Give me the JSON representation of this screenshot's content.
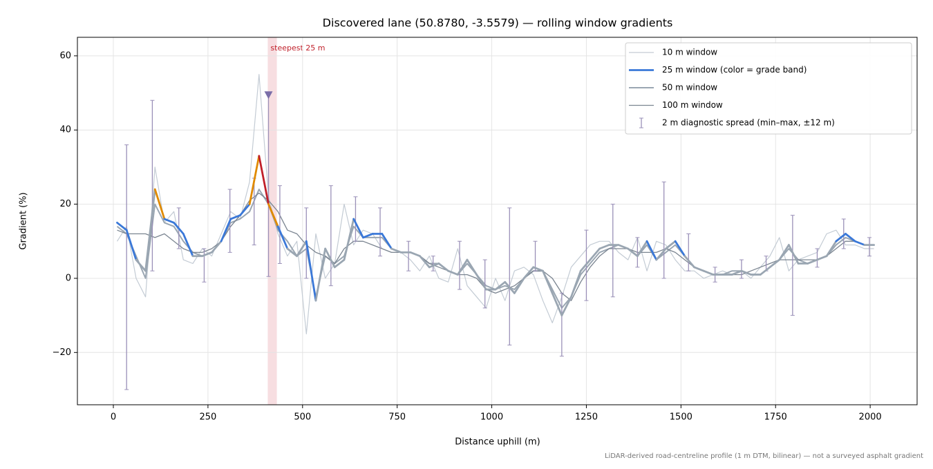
{
  "chart_data": {
    "type": "line",
    "title": "Discovered lane (50.8780, -3.5579) — rolling window gradients",
    "x_label": "Distance uphill (m)",
    "y_label": "Gradient (%)",
    "footnote": "LiDAR-derived road-centreline profile (1 m DTM, bilinear) — not a surveyed asphalt gradient",
    "xlim": [
      -95,
      2124
    ],
    "ylim": [
      -34.1,
      65
    ],
    "xticks": [
      0,
      250,
      500,
      750,
      1000,
      1250,
      1500,
      1750,
      2000
    ],
    "yticks": [
      {
        "value": -20,
        "label": "−20"
      },
      0,
      20,
      40,
      60
    ],
    "grid": true,
    "legend": "upper right",
    "x": [
      10,
      35,
      60,
      85,
      110,
      135,
      160,
      185,
      210,
      235,
      260,
      285,
      310,
      335,
      360,
      385,
      410,
      435,
      460,
      485,
      510,
      535,
      560,
      585,
      610,
      635,
      660,
      685,
      710,
      735,
      760,
      785,
      810,
      835,
      860,
      885,
      910,
      935,
      960,
      985,
      1010,
      1035,
      1060,
      1085,
      1110,
      1135,
      1160,
      1185,
      1210,
      1235,
      1260,
      1285,
      1310,
      1335,
      1360,
      1385,
      1410,
      1435,
      1460,
      1485,
      1510,
      1535,
      1560,
      1585,
      1610,
      1635,
      1660,
      1685,
      1710,
      1735,
      1760,
      1785,
      1810,
      1835,
      1860,
      1885,
      1910,
      1935,
      1960,
      1985,
      2010
    ],
    "series": [
      {
        "name": "10 m window",
        "color": "#c3cbd4",
        "width": 1.2,
        "values": [
          10,
          14,
          0,
          -5,
          30,
          15,
          18,
          5,
          4,
          8,
          6,
          12,
          18,
          16,
          26,
          55,
          22,
          12,
          6,
          10,
          -15,
          12,
          0,
          4,
          20,
          9,
          13,
          12,
          8,
          7,
          7,
          5,
          2,
          6,
          0,
          -1,
          8,
          -2,
          -5,
          -8,
          0,
          -6,
          2,
          3,
          1,
          -6,
          -12,
          -5,
          3,
          6,
          9,
          10,
          10,
          7,
          5,
          11,
          2,
          10,
          9,
          5,
          2,
          2,
          0,
          1,
          2,
          1,
          2,
          0,
          3,
          6,
          11,
          2,
          5,
          6,
          7,
          12,
          13,
          9,
          9,
          8,
          8
        ]
      },
      {
        "name": "50 m window",
        "color": "#9aa6b2",
        "width": 2,
        "values": [
          14,
          12,
          6,
          0,
          20,
          15,
          14,
          10,
          7,
          6,
          7,
          10,
          15,
          16,
          18,
          24,
          20,
          13,
          10,
          6,
          8,
          -5,
          6,
          4,
          6,
          14,
          11,
          11,
          11,
          8,
          7,
          7,
          6,
          4,
          4,
          2,
          1,
          4,
          1,
          -2,
          -3,
          -2,
          -3,
          0,
          2,
          2,
          -3,
          -8,
          -5,
          1,
          4,
          7,
          8,
          9,
          8,
          6,
          9,
          5,
          7,
          9,
          6,
          3,
          2,
          1,
          1,
          2,
          2,
          1,
          1,
          3,
          5,
          8,
          5,
          4,
          5,
          6,
          9,
          11,
          10,
          9,
          9
        ]
      },
      {
        "name": "100 m window",
        "color": "#7a8490",
        "width": 1.3,
        "values": [
          13,
          12,
          12,
          12,
          11,
          12,
          10,
          8,
          7,
          7,
          8,
          10,
          14,
          17,
          21,
          23,
          21,
          18,
          13,
          12,
          9,
          7,
          6,
          4,
          8,
          10,
          10,
          9,
          8,
          7,
          7,
          7,
          6,
          4,
          3,
          2,
          1,
          1,
          0,
          -3,
          -4,
          -3,
          -2,
          0,
          2,
          2,
          0,
          -4,
          -6,
          -1,
          3,
          6,
          8,
          8,
          8,
          7,
          7,
          7,
          8,
          7,
          5,
          3,
          2,
          1,
          1,
          1,
          1,
          2,
          3,
          4,
          5,
          5,
          5,
          5,
          5,
          6,
          8,
          10,
          10,
          9,
          9
        ]
      },
      {
        "name": "25 m window (color = grade band)",
        "color": "#3a78d8",
        "width": 2.8,
        "values": [
          15,
          13,
          5,
          2,
          24,
          16,
          15,
          12,
          6,
          6,
          7,
          10,
          16,
          17,
          20,
          33,
          20,
          14,
          8,
          6,
          10,
          -6,
          8,
          3,
          5,
          16,
          11,
          12,
          12,
          8,
          7,
          7,
          6,
          3,
          4,
          2,
          1,
          5,
          1,
          -3,
          -3,
          -1,
          -4,
          0,
          3,
          2,
          -4,
          -10,
          -5,
          2,
          5,
          8,
          9,
          9,
          8,
          6,
          10,
          5,
          8,
          10,
          6,
          3,
          2,
          1,
          1,
          1,
          2,
          1,
          1,
          3,
          5,
          9,
          4,
          4,
          5,
          6,
          10,
          12,
          10,
          9,
          9
        ],
        "point_colors": [
          "#3a78d8",
          "#3a78d8",
          "#9aa6b2",
          "#9aa6b2",
          "#e08a00",
          "#3a78d8",
          "#3a78d8",
          "#3a78d8",
          "#9aa6b2",
          "#9aa6b2",
          "#9aa6b2",
          "#3a78d8",
          "#3a78d8",
          "#3a78d8",
          "#e08a00",
          "#c0202a",
          "#e08a00",
          "#3a78d8",
          "#9aa6b2",
          "#9aa6b2",
          "#3a78d8",
          "#9aa6b2",
          "#9aa6b2",
          "#9aa6b2",
          "#9aa6b2",
          "#3a78d8",
          "#3a78d8",
          "#3a78d8",
          "#3a78d8",
          "#9aa6b2",
          "#9aa6b2",
          "#9aa6b2",
          "#9aa6b2",
          "#9aa6b2",
          "#9aa6b2",
          "#9aa6b2",
          "#9aa6b2",
          "#9aa6b2",
          "#9aa6b2",
          "#9aa6b2",
          "#9aa6b2",
          "#9aa6b2",
          "#9aa6b2",
          "#9aa6b2",
          "#9aa6b2",
          "#9aa6b2",
          "#9aa6b2",
          "#9aa6b2",
          "#9aa6b2",
          "#9aa6b2",
          "#9aa6b2",
          "#9aa6b2",
          "#9aa6b2",
          "#9aa6b2",
          "#9aa6b2",
          "#9aa6b2",
          "#3a78d8",
          "#9aa6b2",
          "#9aa6b2",
          "#3a78d8",
          "#9aa6b2",
          "#9aa6b2",
          "#9aa6b2",
          "#9aa6b2",
          "#9aa6b2",
          "#9aa6b2",
          "#9aa6b2",
          "#9aa6b2",
          "#9aa6b2",
          "#9aa6b2",
          "#9aa6b2",
          "#9aa6b2",
          "#9aa6b2",
          "#9aa6b2",
          "#9aa6b2",
          "#9aa6b2",
          "#3a78d8",
          "#3a78d8",
          "#3a78d8",
          "#9aa6b2",
          "#9aa6b2"
        ]
      }
    ],
    "errorbars": {
      "name": "2 m diagnostic spread (min–max, ±12 m)",
      "color": "#9a90b8",
      "x": [
        35,
        103,
        173,
        240,
        308,
        372,
        410,
        440,
        510,
        575,
        640,
        705,
        780,
        845,
        915,
        982,
        1047,
        1115,
        1185,
        1250,
        1320,
        1385,
        1455,
        1520,
        1590,
        1660,
        1725,
        1795,
        1860,
        1930,
        1998
      ],
      "min": [
        -30,
        2,
        8,
        -1,
        7,
        9,
        0.5,
        4,
        0,
        -2,
        10,
        6,
        2,
        2,
        -3,
        -8,
        -18,
        2,
        -21,
        -6,
        -5,
        3,
        0,
        2,
        -1,
        0,
        2,
        -10,
        3,
        8,
        6
      ],
      "max": [
        36,
        48,
        19,
        8,
        24,
        27,
        50,
        25,
        19,
        25,
        22,
        19,
        10,
        6,
        10,
        5,
        19,
        10,
        -4,
        13,
        20,
        11,
        26,
        12,
        3,
        5,
        6,
        17,
        8,
        16,
        11
      ]
    },
    "highlight": {
      "label": "steepest 25 m",
      "xrange": [
        408,
        432
      ],
      "color": "#e8a0a8"
    },
    "marker": {
      "x": 410,
      "y": 49.5,
      "color": "#7a6ea8"
    }
  }
}
